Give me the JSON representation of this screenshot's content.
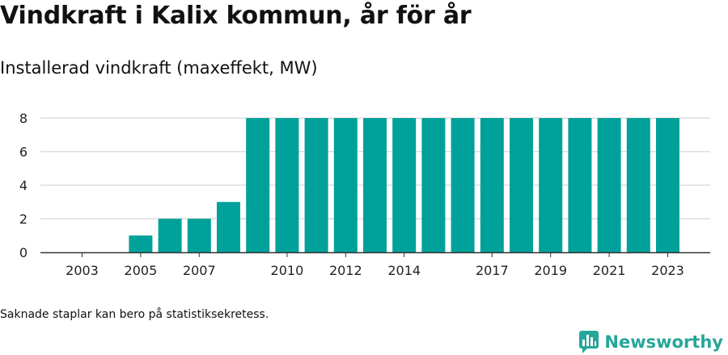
{
  "title": "Vindkraft i Kalix kommun, år för år",
  "subtitle": "Installerad vindkraft (maxeffekt, MW)",
  "footnote": "Saknade staplar kan bero på statistiksekretess.",
  "brand": {
    "name": "Newsworthy",
    "color": "#26a69a"
  },
  "chart_data": {
    "type": "bar",
    "categories": [
      "2003",
      "2004",
      "2005",
      "2006",
      "2007",
      "2008",
      "2009",
      "2010",
      "2011",
      "2012",
      "2013",
      "2014",
      "2015",
      "2016",
      "2017",
      "2018",
      "2019",
      "2020",
      "2021",
      "2022",
      "2023"
    ],
    "values": [
      null,
      null,
      1,
      2,
      2,
      3,
      8,
      8,
      8,
      8,
      8,
      8,
      8,
      8,
      8,
      8,
      8,
      8,
      8,
      8,
      8
    ],
    "x_tick_labels": [
      "2003",
      "2005",
      "2007",
      "2010",
      "2012",
      "2014",
      "2017",
      "2019",
      "2021",
      "2023"
    ],
    "y_ticks": [
      0,
      2,
      4,
      6,
      8
    ],
    "ylim": [
      0,
      8
    ],
    "grid": true,
    "bar_color": "#00a19a"
  }
}
